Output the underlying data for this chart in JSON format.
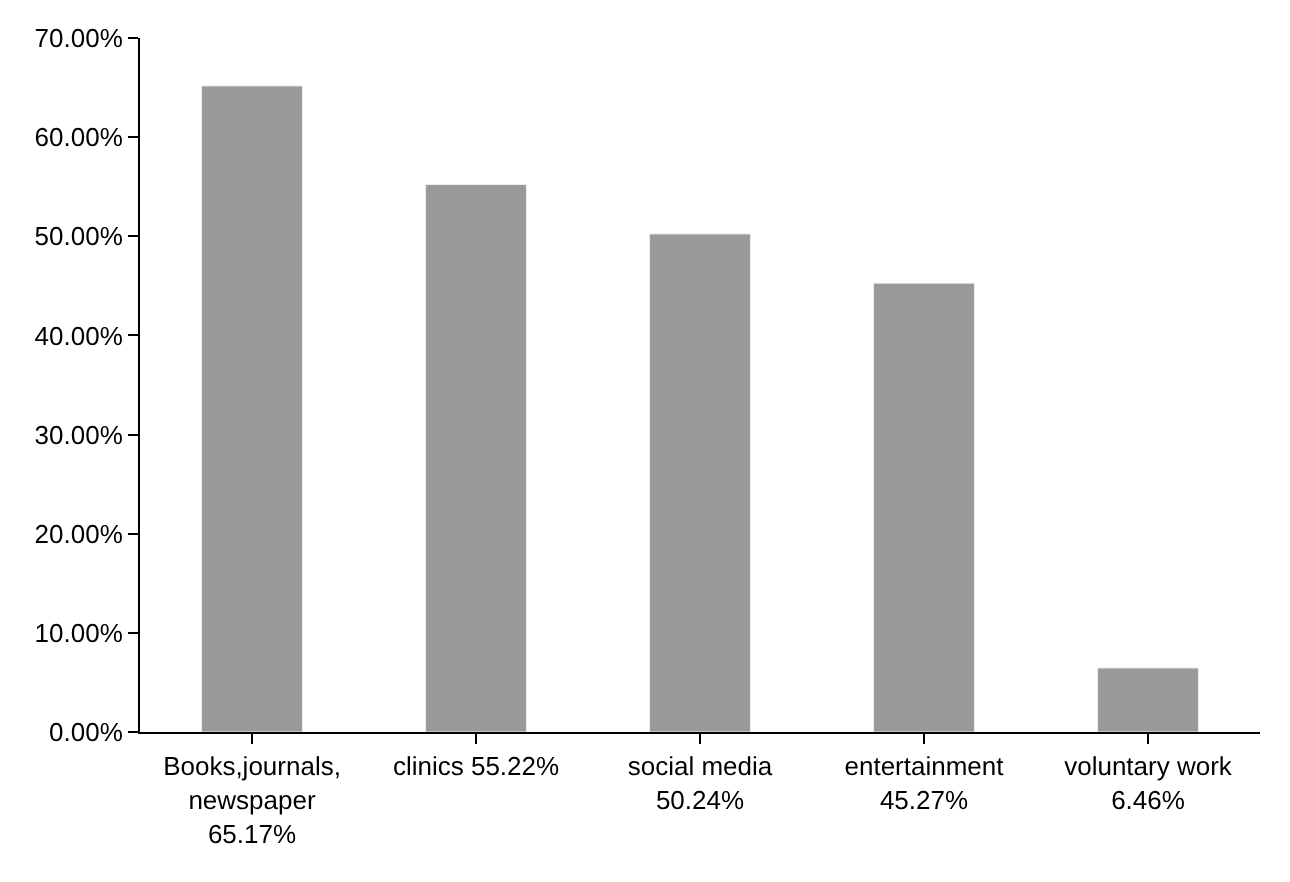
{
  "chart_data": {
    "type": "bar",
    "categories": [
      "Books,journals, newspaper 65.17%",
      "clinics 55.22%",
      "social media 50.24%",
      "entertainment 45.27%",
      "voluntary work 6.46%"
    ],
    "values": [
      65.17,
      55.22,
      50.24,
      45.27,
      6.46
    ],
    "color": "#999999",
    "ylim": [
      0,
      70
    ],
    "yticks": [
      {
        "value": 0,
        "label": "0.00%"
      },
      {
        "value": 10,
        "label": "10.00%"
      },
      {
        "value": 20,
        "label": "20.00%"
      },
      {
        "value": 30,
        "label": "30.00%"
      },
      {
        "value": 40,
        "label": "40.00%"
      },
      {
        "value": 50,
        "label": "50.00%"
      },
      {
        "value": 60,
        "label": "60.00%"
      },
      {
        "value": 70,
        "label": "70.00%"
      }
    ],
    "legend": false
  }
}
